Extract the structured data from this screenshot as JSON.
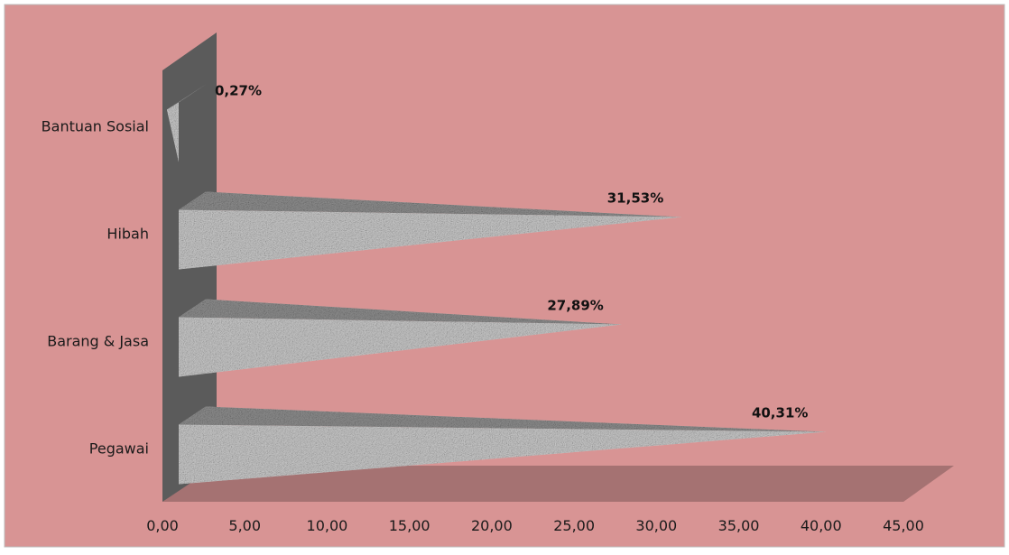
{
  "colors": {
    "background": "#D89494",
    "wall": "#5B5B5B",
    "floor": "#A57272",
    "bar_light": "#C9C9C9",
    "bar_dark": "#8E8E8E",
    "text": "#1A1A1A",
    "label_bold": "#111111"
  },
  "chart_data": {
    "type": "bar",
    "orientation": "horizontal",
    "style": "3d-pyramid",
    "categories": [
      "Pegawai",
      "Barang & Jasa",
      "Hibah",
      "Bantuan Sosial"
    ],
    "values": [
      40.31,
      27.89,
      31.53,
      0.27
    ],
    "data_labels": [
      "40,31%",
      "27,89%",
      "31,53%",
      "0,27%"
    ],
    "x_ticks": [
      "0,00",
      "5,00",
      "10,00",
      "15,00",
      "20,00",
      "25,00",
      "30,00",
      "35,00",
      "40,00",
      "45,00"
    ],
    "xlim": [
      0,
      45
    ],
    "grid": false,
    "legend": "none"
  }
}
